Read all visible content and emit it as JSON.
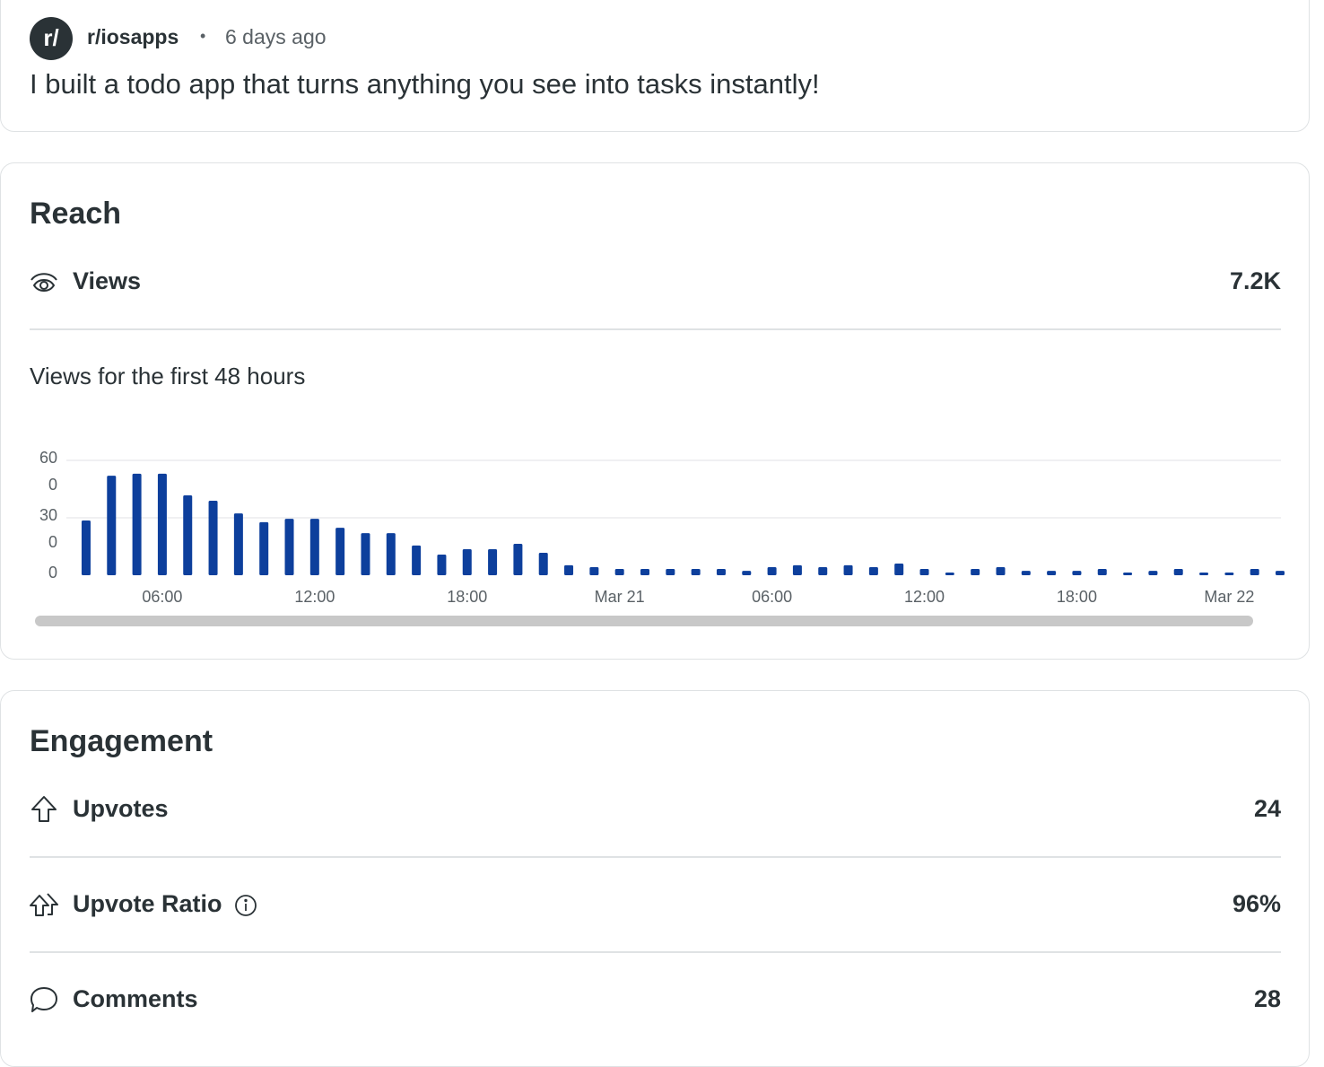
{
  "header": {
    "avatar_text": "r/",
    "subreddit": "r/iosapps",
    "separator": "•",
    "age": "6 days ago",
    "title": "I built a todo app that turns anything you see into tasks instantly!"
  },
  "reach": {
    "heading": "Reach",
    "views_label": "Views",
    "views_value": "7.2K"
  },
  "chart_data": {
    "type": "bar",
    "title": "Views for the first 48 hours",
    "color": "#0d3f9c",
    "categories": [
      null,
      null,
      null,
      "06:00",
      null,
      null,
      null,
      null,
      null,
      "12:00",
      null,
      null,
      null,
      null,
      null,
      "18:00",
      null,
      null,
      null,
      null,
      null,
      "Mar 21",
      null,
      null,
      null,
      null,
      null,
      "06:00",
      null,
      null,
      null,
      null,
      null,
      "12:00",
      null,
      null,
      null,
      null,
      null,
      "18:00",
      null,
      null,
      null,
      null,
      null,
      "Mar 22",
      null,
      null
    ],
    "values": [
      286,
      520,
      530,
      530,
      417,
      389,
      323,
      277,
      295,
      295,
      248,
      220,
      220,
      155,
      108,
      136,
      136,
      164,
      117,
      52,
      42,
      33,
      33,
      33,
      33,
      33,
      23,
      42,
      52,
      42,
      52,
      42,
      61,
      33,
      14,
      33,
      42,
      23,
      23,
      23,
      33,
      14,
      23,
      33,
      14,
      14,
      33,
      23
    ],
    "ylim": [
      0,
      600
    ],
    "yticks": [
      0,
      300,
      600
    ],
    "grid": true
  },
  "engagement": {
    "heading": "Engagement",
    "rows": [
      {
        "label": "Upvotes",
        "value": "24"
      },
      {
        "label": "Upvote Ratio",
        "value": "96%"
      },
      {
        "label": "Comments",
        "value": "28"
      }
    ]
  }
}
